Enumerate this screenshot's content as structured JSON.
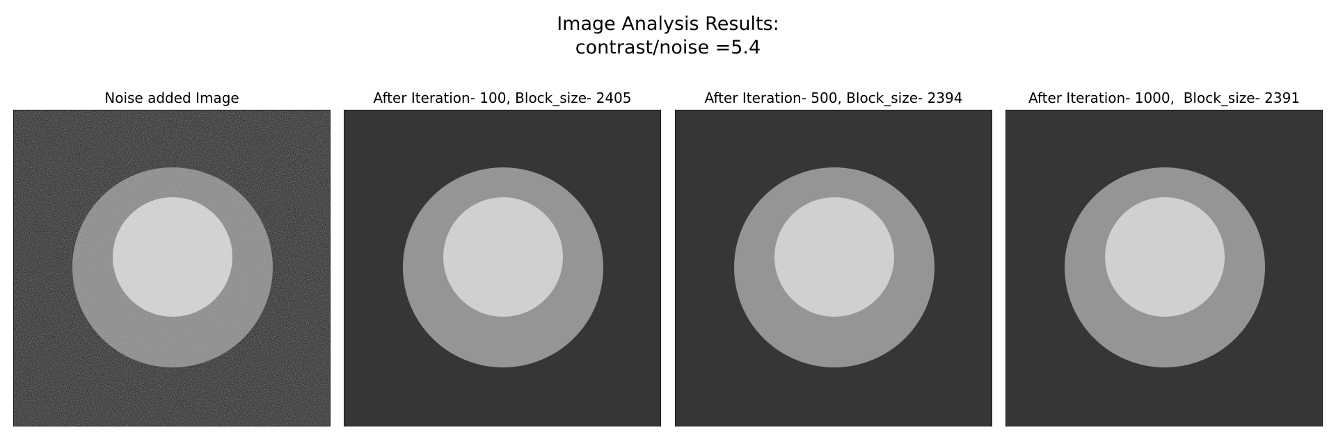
{
  "figure": {
    "title_line1": "Image Analysis Results:",
    "title_line2": "contrast/noise =5.4"
  },
  "panels": [
    {
      "title": "Noise added Image",
      "kind": "noisy"
    },
    {
      "title": "After Iteration- 100, Block_size- 2405",
      "kind": "denoised"
    },
    {
      "title": "After Iteration- 500, Block_size- 2394",
      "kind": "denoised"
    },
    {
      "title": "After Iteration- 1000,  Block_size- 2391",
      "kind": "denoised"
    }
  ],
  "colors": {
    "background_noisy": "#393939",
    "ring_noisy": "#8c8c8c",
    "core_noisy": "#d6d6d6",
    "background_denoised": "#363636",
    "ring_denoised": "#959595",
    "core_denoised": "#d0d0d0"
  }
}
